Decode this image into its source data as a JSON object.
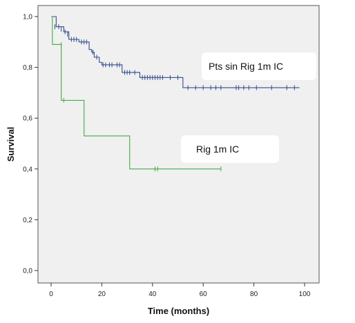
{
  "chart_data": {
    "type": "line",
    "title": "",
    "xlabel": "Time (months)",
    "ylabel": "Survival",
    "xlim": [
      0,
      100
    ],
    "ylim": [
      0.0,
      1.0
    ],
    "x_ticks": [
      "0",
      "20",
      "40",
      "60",
      "80",
      "100"
    ],
    "y_ticks": [
      "0,0",
      "0,2",
      "0,4",
      "0,6",
      "0,8",
      "1,0"
    ],
    "grid": false,
    "colors": {
      "plot_bg": "#f0f0f0",
      "series_blue": "#2f4a8c",
      "series_green": "#44aa44"
    },
    "series": [
      {
        "name": "Pts sin Rig 1m IC",
        "color": "#2f4a8c",
        "steps": [
          [
            0,
            1.0
          ],
          [
            2,
            0.96
          ],
          [
            5,
            0.94
          ],
          [
            7,
            0.91
          ],
          [
            11,
            0.9
          ],
          [
            15,
            0.87
          ],
          [
            16,
            0.86
          ],
          [
            17,
            0.84
          ],
          [
            19,
            0.82
          ],
          [
            20,
            0.81
          ],
          [
            28,
            0.78
          ],
          [
            35,
            0.76
          ],
          [
            52,
            0.72
          ],
          [
            98,
            0.72
          ]
        ],
        "censored": [
          [
            1.5,
            0.96
          ],
          [
            3,
            0.96
          ],
          [
            4,
            0.95
          ],
          [
            5.5,
            0.94
          ],
          [
            6.5,
            0.93
          ],
          [
            8,
            0.91
          ],
          [
            9,
            0.91
          ],
          [
            10,
            0.91
          ],
          [
            12,
            0.9
          ],
          [
            13,
            0.9
          ],
          [
            14,
            0.9
          ],
          [
            16.5,
            0.86
          ],
          [
            18,
            0.84
          ],
          [
            20.5,
            0.81
          ],
          [
            21.5,
            0.81
          ],
          [
            23,
            0.81
          ],
          [
            24,
            0.81
          ],
          [
            26,
            0.81
          ],
          [
            27,
            0.81
          ],
          [
            29,
            0.78
          ],
          [
            30,
            0.78
          ],
          [
            31,
            0.78
          ],
          [
            33,
            0.78
          ],
          [
            36,
            0.76
          ],
          [
            37,
            0.76
          ],
          [
            38,
            0.76
          ],
          [
            39,
            0.76
          ],
          [
            40,
            0.76
          ],
          [
            41,
            0.76
          ],
          [
            42,
            0.76
          ],
          [
            43,
            0.76
          ],
          [
            44,
            0.76
          ],
          [
            47,
            0.76
          ],
          [
            50,
            0.76
          ],
          [
            54,
            0.72
          ],
          [
            57,
            0.72
          ],
          [
            60,
            0.72
          ],
          [
            63,
            0.72
          ],
          [
            65,
            0.72
          ],
          [
            67,
            0.72
          ],
          [
            73,
            0.72
          ],
          [
            74,
            0.72
          ],
          [
            76,
            0.72
          ],
          [
            78,
            0.72
          ],
          [
            81,
            0.72
          ],
          [
            87,
            0.72
          ],
          [
            93,
            0.72
          ],
          [
            96,
            0.72
          ]
        ]
      },
      {
        "name": "Rig 1m IC",
        "color": "#44aa44",
        "steps": [
          [
            0,
            1.0
          ],
          [
            0.5,
            0.89
          ],
          [
            4,
            0.67
          ],
          [
            13,
            0.53
          ],
          [
            31,
            0.4
          ],
          [
            67,
            0.4
          ]
        ],
        "censored": [
          [
            4,
            0.89
          ],
          [
            5,
            0.67
          ],
          [
            41,
            0.4
          ],
          [
            42,
            0.4
          ],
          [
            67,
            0.4
          ]
        ]
      }
    ],
    "annotations": [
      {
        "text": "Pts sin Rig 1m IC",
        "series": "Pts sin Rig 1m IC"
      },
      {
        "text": "Rig 1m IC",
        "series": "Rig 1m IC"
      }
    ]
  }
}
